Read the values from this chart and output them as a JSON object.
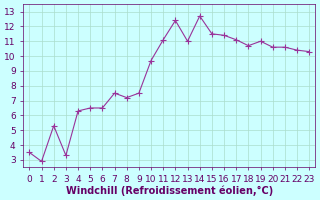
{
  "x": [
    0,
    1,
    2,
    3,
    4,
    5,
    6,
    7,
    8,
    9,
    10,
    11,
    12,
    13,
    14,
    15,
    16,
    17,
    18,
    19,
    20,
    21,
    22,
    23
  ],
  "y": [
    3.5,
    2.9,
    5.3,
    3.3,
    6.3,
    6.5,
    6.5,
    7.5,
    7.2,
    7.5,
    9.7,
    11.1,
    12.4,
    11.0,
    12.7,
    11.5,
    11.4,
    11.1,
    10.7,
    11.0,
    10.6,
    10.6,
    10.4,
    10.3
  ],
  "line_color": "#993399",
  "marker": "+",
  "marker_color": "#993399",
  "bg_color": "#ccffff",
  "grid_color": "#aaddcc",
  "axis_label_color": "#660066",
  "tick_color": "#660066",
  "xlabel": "Windchill (Refroidissement éolien,°C)",
  "xlim": [
    -0.5,
    23.5
  ],
  "ylim": [
    2.5,
    13.5
  ],
  "yticks": [
    3,
    4,
    5,
    6,
    7,
    8,
    9,
    10,
    11,
    12,
    13
  ],
  "xticks": [
    0,
    1,
    2,
    3,
    4,
    5,
    6,
    7,
    8,
    9,
    10,
    11,
    12,
    13,
    14,
    15,
    16,
    17,
    18,
    19,
    20,
    21,
    22,
    23
  ],
  "xlabel_fontsize": 7,
  "tick_fontsize": 6.5,
  "figsize": [
    3.2,
    2.0
  ],
  "dpi": 100
}
